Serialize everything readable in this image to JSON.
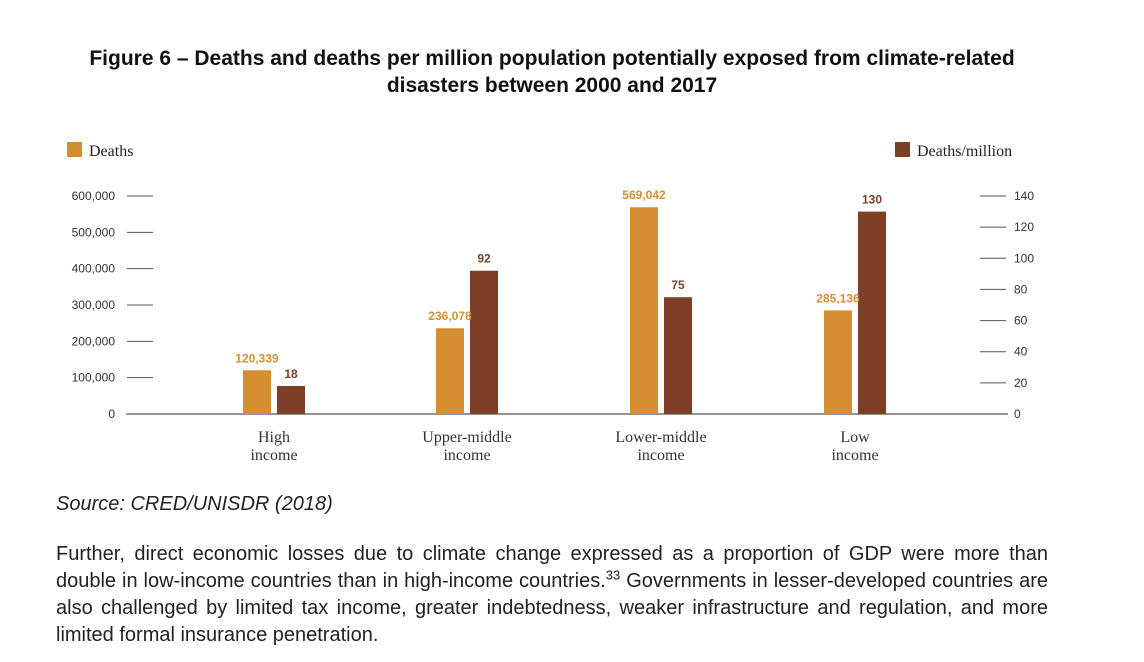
{
  "title_line1": "Figure 6 – Deaths and deaths per million population potentially exposed from climate-related",
  "title_line2": "disasters between 2000 and 2017",
  "source": "Source: CRED/UNISDR (2018)",
  "paragraph": {
    "part1": "Further, direct economic losses due to climate change expressed as a proportion of GDP were more than double in low-income countries than in high-income countries.",
    "footnote": "33",
    "part2": " Governments in lesser-developed countries are also challenged by limited tax income, greater indebtedness, weaker infrastructure and regulation, and more limited formal insurance penetration."
  },
  "colors": {
    "deaths": "#D68F30",
    "deaths_per_million": "#7E3F27",
    "axis": "#555555",
    "text": "#333333"
  },
  "chart_data": {
    "type": "bar",
    "categories": [
      [
        "High",
        "income"
      ],
      [
        "Upper-middle",
        "income"
      ],
      [
        "Lower-middle",
        "income"
      ],
      [
        "Low",
        "income"
      ]
    ],
    "series": [
      {
        "name": "Deaths",
        "axis": "left",
        "values": [
          120339,
          236078,
          569042,
          285136
        ],
        "labels": [
          "120,339",
          "236,078",
          "569,042",
          "285,136"
        ]
      },
      {
        "name": "Deaths/million",
        "axis": "right",
        "values": [
          18,
          92,
          75,
          130
        ],
        "labels": [
          "18",
          "92",
          "75",
          "130"
        ]
      }
    ],
    "y_left": {
      "ylim": [
        0,
        600000
      ],
      "ticks": [
        "0",
        "100,000",
        "200,000",
        "300,000",
        "400,000",
        "500,000",
        "600,000"
      ]
    },
    "y_right": {
      "ylim": [
        0,
        140
      ],
      "ticks": [
        "0",
        "20",
        "40",
        "60",
        "80",
        "100",
        "120",
        "140"
      ]
    },
    "legend": "top-left and top-right",
    "grid": false
  }
}
